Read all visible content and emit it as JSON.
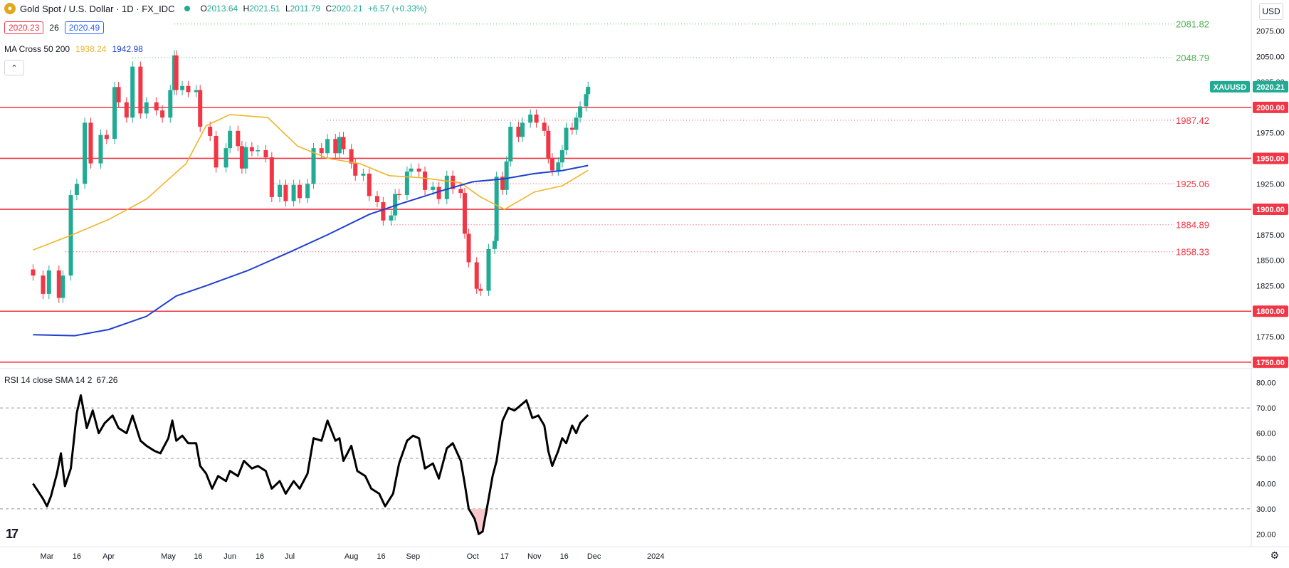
{
  "header": {
    "title": "Gold Spot / U.S. Dollar · 1D · FX_IDC",
    "coin_icon": "gold-coin-icon",
    "ohlc": {
      "o_label": "O",
      "o": "2013.64",
      "h_label": "H",
      "h": "2021.51",
      "l_label": "L",
      "l": "2011.79",
      "c_label": "C",
      "c": "2020.21",
      "change": "+6.57 (+0.33%)"
    },
    "bid": "2020.23",
    "spread": "26",
    "ask": "2020.49",
    "ma_label": "MA Cross 50 200",
    "ma50_value": "1938.24",
    "ma200_value": "1942.98",
    "collapse_icon": "chevron-up-icon",
    "currency": "USD"
  },
  "rsi_legend": {
    "label": "RSI 14 close SMA 14 2",
    "value": "67.26"
  },
  "colors": {
    "up": "#22ab94",
    "down": "#f23645",
    "ma50": "#f0b429",
    "ma200": "#1f3fd1",
    "level": "#f23645",
    "green_level": "#4caf50",
    "rsi": "#000000"
  },
  "chart_data": [
    {
      "type": "candlestick",
      "symbol": "XAUUSD",
      "last_price": "2020.21",
      "ylim": [
        1745,
        2090
      ],
      "yticks": [
        "2075.00",
        "2050.00",
        "2025.00",
        "2000.00",
        "1975.00",
        "1950.00",
        "1925.00",
        "1900.00",
        "1875.00",
        "1850.00",
        "1825.00",
        "1800.00",
        "1775.00",
        "1750.00"
      ],
      "x_labels": [
        {
          "label": "Mar",
          "date": "2023-03-01"
        },
        {
          "label": "16",
          "date": "2023-03-16"
        },
        {
          "label": "Apr",
          "date": "2023-04-01"
        },
        {
          "label": "May",
          "date": "2023-05-01"
        },
        {
          "label": "16",
          "date": "2023-05-16"
        },
        {
          "label": "Jun",
          "date": "2023-06-01"
        },
        {
          "label": "16",
          "date": "2023-06-16"
        },
        {
          "label": "Jul",
          "date": "2023-07-01"
        },
        {
          "label": "Aug",
          "date": "2023-08-01"
        },
        {
          "label": "16",
          "date": "2023-08-16"
        },
        {
          "label": "Sep",
          "date": "2023-09-01"
        },
        {
          "label": "Oct",
          "date": "2023-10-01"
        },
        {
          "label": "17",
          "date": "2023-10-17"
        },
        {
          "label": "Nov",
          "date": "2023-11-01"
        },
        {
          "label": "16",
          "date": "2023-11-16"
        },
        {
          "label": "Dec",
          "date": "2023-12-01"
        },
        {
          "label": "2024",
          "date": "2024-01-01"
        }
      ],
      "horizontal_levels": [
        2000,
        1950,
        1900,
        1800,
        1750
      ],
      "level_labels": [
        "2000.00",
        "1950.00",
        "1900.00",
        "1800.00",
        "1750.00"
      ],
      "annotated_highs": [
        {
          "value": 2081.82,
          "label": "2081.82",
          "from": "2023-05-04"
        },
        {
          "value": 2048.79,
          "label": "2048.79",
          "from": "2023-04-13"
        }
      ],
      "annotated_lows": [
        {
          "value": 1987.42,
          "label": "1987.42",
          "from": "2023-07-20"
        },
        {
          "value": 1925.06,
          "label": "1925.06",
          "from": "2023-06-23"
        },
        {
          "value": 1884.89,
          "label": "1884.89",
          "from": "2023-08-21"
        },
        {
          "value": 1858.33,
          "label": "1858.33",
          "from": "2023-03-10"
        }
      ],
      "closes": [
        [
          "2023-02-22",
          1835
        ],
        [
          "2023-02-27",
          1817
        ],
        [
          "2023-03-02",
          1840
        ],
        [
          "2023-03-07",
          1813
        ],
        [
          "2023-03-09",
          1835
        ],
        [
          "2023-03-13",
          1914
        ],
        [
          "2023-03-16",
          1925
        ],
        [
          "2023-03-20",
          1985
        ],
        [
          "2023-03-23",
          1945
        ],
        [
          "2023-03-28",
          1973
        ],
        [
          "2023-03-31",
          1969
        ],
        [
          "2023-04-04",
          2020
        ],
        [
          "2023-04-06",
          2005
        ],
        [
          "2023-04-10",
          1990
        ],
        [
          "2023-04-13",
          2040
        ],
        [
          "2023-04-17",
          1994
        ],
        [
          "2023-04-20",
          2005
        ],
        [
          "2023-04-25",
          1997
        ],
        [
          "2023-04-28",
          1990
        ],
        [
          "2023-05-02",
          2017
        ],
        [
          "2023-05-04",
          2051
        ],
        [
          "2023-05-05",
          2017
        ],
        [
          "2023-05-08",
          2021
        ],
        [
          "2023-05-11",
          2015
        ],
        [
          "2023-05-15",
          2017
        ],
        [
          "2023-05-17",
          1981
        ],
        [
          "2023-05-22",
          1972
        ],
        [
          "2023-05-25",
          1941
        ],
        [
          "2023-05-30",
          1960
        ],
        [
          "2023-06-01",
          1977
        ],
        [
          "2023-06-05",
          1962
        ],
        [
          "2023-06-07",
          1940
        ],
        [
          "2023-06-09",
          1961
        ],
        [
          "2023-06-12",
          1957
        ],
        [
          "2023-06-15",
          1958
        ],
        [
          "2023-06-19",
          1951
        ],
        [
          "2023-06-22",
          1912
        ],
        [
          "2023-06-26",
          1924
        ],
        [
          "2023-06-29",
          1908
        ],
        [
          "2023-07-03",
          1924
        ],
        [
          "2023-07-06",
          1911
        ],
        [
          "2023-07-10",
          1925
        ],
        [
          "2023-07-13",
          1960
        ],
        [
          "2023-07-17",
          1955
        ],
        [
          "2023-07-20",
          1969
        ],
        [
          "2023-07-24",
          1955
        ],
        [
          "2023-07-26",
          1971
        ],
        [
          "2023-07-28",
          1959
        ],
        [
          "2023-08-01",
          1945
        ],
        [
          "2023-08-03",
          1933
        ],
        [
          "2023-08-07",
          1935
        ],
        [
          "2023-08-10",
          1913
        ],
        [
          "2023-08-14",
          1907
        ],
        [
          "2023-08-17",
          1889
        ],
        [
          "2023-08-21",
          1894
        ],
        [
          "2023-08-23",
          1915
        ],
        [
          "2023-08-25",
          1914
        ],
        [
          "2023-08-29",
          1937
        ],
        [
          "2023-08-31",
          1940
        ],
        [
          "2023-09-04",
          1937
        ],
        [
          "2023-09-07",
          1919
        ],
        [
          "2023-09-11",
          1922
        ],
        [
          "2023-09-14",
          1910
        ],
        [
          "2023-09-18",
          1933
        ],
        [
          "2023-09-21",
          1920
        ],
        [
          "2023-09-25",
          1916
        ],
        [
          "2023-09-27",
          1876
        ],
        [
          "2023-09-29",
          1848
        ],
        [
          "2023-10-03",
          1822
        ],
        [
          "2023-10-05",
          1820
        ],
        [
          "2023-10-09",
          1861
        ],
        [
          "2023-10-12",
          1869
        ],
        [
          "2023-10-13",
          1932
        ],
        [
          "2023-10-16",
          1919
        ],
        [
          "2023-10-18",
          1947
        ],
        [
          "2023-10-20",
          1981
        ],
        [
          "2023-10-24",
          1971
        ],
        [
          "2023-10-26",
          1985
        ],
        [
          "2023-10-30",
          1993
        ],
        [
          "2023-11-02",
          1985
        ],
        [
          "2023-11-06",
          1977
        ],
        [
          "2023-11-08",
          1950
        ],
        [
          "2023-11-10",
          1938
        ],
        [
          "2023-11-13",
          1946
        ],
        [
          "2023-11-15",
          1958
        ],
        [
          "2023-11-17",
          1980
        ],
        [
          "2023-11-20",
          1978
        ],
        [
          "2023-11-22",
          1990
        ],
        [
          "2023-11-24",
          2001
        ],
        [
          "2023-11-27",
          2013
        ],
        [
          "2023-11-28",
          2020.21
        ]
      ],
      "ma50_path": [
        [
          "2023-02-22",
          1860
        ],
        [
          "2023-03-15",
          1876
        ],
        [
          "2023-04-01",
          1890
        ],
        [
          "2023-04-20",
          1910
        ],
        [
          "2023-05-10",
          1945
        ],
        [
          "2023-05-20",
          1982
        ],
        [
          "2023-06-01",
          1993
        ],
        [
          "2023-06-20",
          1990
        ],
        [
          "2023-07-05",
          1962
        ],
        [
          "2023-07-20",
          1950
        ],
        [
          "2023-08-05",
          1945
        ],
        [
          "2023-08-20",
          1933
        ],
        [
          "2023-09-05",
          1931
        ],
        [
          "2023-09-25",
          1926
        ],
        [
          "2023-10-05",
          1912
        ],
        [
          "2023-10-17",
          1900
        ],
        [
          "2023-11-01",
          1917
        ],
        [
          "2023-11-15",
          1923
        ],
        [
          "2023-11-28",
          1938.24
        ]
      ],
      "ma200_path": [
        [
          "2023-02-22",
          1777
        ],
        [
          "2023-03-15",
          1776
        ],
        [
          "2023-04-01",
          1782
        ],
        [
          "2023-04-20",
          1795
        ],
        [
          "2023-05-05",
          1815
        ],
        [
          "2023-05-20",
          1825
        ],
        [
          "2023-06-10",
          1840
        ],
        [
          "2023-07-01",
          1858
        ],
        [
          "2023-07-20",
          1875
        ],
        [
          "2023-08-10",
          1895
        ],
        [
          "2023-08-25",
          1905
        ],
        [
          "2023-09-15",
          1918
        ],
        [
          "2023-10-01",
          1927
        ],
        [
          "2023-10-17",
          1930
        ],
        [
          "2023-11-01",
          1935
        ],
        [
          "2023-11-15",
          1938
        ],
        [
          "2023-11-28",
          1942.98
        ]
      ],
      "price_tags": [
        {
          "label": "XAUUSD",
          "value": "2020.21"
        }
      ]
    },
    {
      "type": "line",
      "name": "RSI 14 close SMA 14 2",
      "ylim": [
        15,
        85
      ],
      "yticks": [
        "80.00",
        "70.00",
        "60.00",
        "50.00",
        "40.00",
        "30.00",
        "20.00"
      ],
      "guide_levels": [
        70,
        50,
        30
      ],
      "values": [
        [
          "2023-02-22",
          40
        ],
        [
          "2023-02-27",
          34
        ],
        [
          "2023-03-01",
          31
        ],
        [
          "2023-03-03",
          35
        ],
        [
          "2023-03-06",
          44
        ],
        [
          "2023-03-08",
          52
        ],
        [
          "2023-03-10",
          39
        ],
        [
          "2023-03-13",
          46
        ],
        [
          "2023-03-16",
          68
        ],
        [
          "2023-03-18",
          75
        ],
        [
          "2023-03-21",
          62
        ],
        [
          "2023-03-24",
          69
        ],
        [
          "2023-03-27",
          60
        ],
        [
          "2023-03-30",
          64
        ],
        [
          "2023-04-03",
          67
        ],
        [
          "2023-04-06",
          62
        ],
        [
          "2023-04-10",
          60
        ],
        [
          "2023-04-13",
          67
        ],
        [
          "2023-04-17",
          57
        ],
        [
          "2023-04-20",
          55
        ],
        [
          "2023-04-24",
          53
        ],
        [
          "2023-04-27",
          52
        ],
        [
          "2023-05-01",
          58
        ],
        [
          "2023-05-03",
          65
        ],
        [
          "2023-05-05",
          57
        ],
        [
          "2023-05-08",
          59
        ],
        [
          "2023-05-11",
          56
        ],
        [
          "2023-05-15",
          56
        ],
        [
          "2023-05-17",
          47
        ],
        [
          "2023-05-20",
          44
        ],
        [
          "2023-05-23",
          38
        ],
        [
          "2023-05-26",
          43
        ],
        [
          "2023-05-30",
          41
        ],
        [
          "2023-06-01",
          45
        ],
        [
          "2023-06-05",
          43
        ],
        [
          "2023-06-08",
          49
        ],
        [
          "2023-06-12",
          46
        ],
        [
          "2023-06-15",
          47
        ],
        [
          "2023-06-19",
          45
        ],
        [
          "2023-06-22",
          38
        ],
        [
          "2023-06-26",
          41
        ],
        [
          "2023-06-29",
          36
        ],
        [
          "2023-07-03",
          41
        ],
        [
          "2023-07-06",
          38
        ],
        [
          "2023-07-10",
          44
        ],
        [
          "2023-07-13",
          58
        ],
        [
          "2023-07-17",
          57
        ],
        [
          "2023-07-20",
          65
        ],
        [
          "2023-07-24",
          57
        ],
        [
          "2023-07-26",
          58
        ],
        [
          "2023-07-28",
          49
        ],
        [
          "2023-08-01",
          55
        ],
        [
          "2023-08-04",
          45
        ],
        [
          "2023-08-08",
          43
        ],
        [
          "2023-08-11",
          38
        ],
        [
          "2023-08-15",
          36
        ],
        [
          "2023-08-18",
          31
        ],
        [
          "2023-08-22",
          36
        ],
        [
          "2023-08-25",
          48
        ],
        [
          "2023-08-29",
          57
        ],
        [
          "2023-09-01",
          59
        ],
        [
          "2023-09-04",
          58
        ],
        [
          "2023-09-07",
          46
        ],
        [
          "2023-09-11",
          48
        ],
        [
          "2023-09-14",
          42
        ],
        [
          "2023-09-18",
          54
        ],
        [
          "2023-09-21",
          56
        ],
        [
          "2023-09-25",
          49
        ],
        [
          "2023-09-27",
          40
        ],
        [
          "2023-09-29",
          30
        ],
        [
          "2023-10-02",
          26
        ],
        [
          "2023-10-04",
          20
        ],
        [
          "2023-10-06",
          21
        ],
        [
          "2023-10-09",
          34
        ],
        [
          "2023-10-11",
          43
        ],
        [
          "2023-10-13",
          49
        ],
        [
          "2023-10-16",
          65
        ],
        [
          "2023-10-19",
          70
        ],
        [
          "2023-10-22",
          69
        ],
        [
          "2023-10-25",
          71
        ],
        [
          "2023-10-28",
          73
        ],
        [
          "2023-10-31",
          66
        ],
        [
          "2023-11-03",
          67
        ],
        [
          "2023-11-06",
          63
        ],
        [
          "2023-11-08",
          53
        ],
        [
          "2023-11-10",
          47
        ],
        [
          "2023-11-13",
          53
        ],
        [
          "2023-11-15",
          58
        ],
        [
          "2023-11-17",
          56
        ],
        [
          "2023-11-20",
          63
        ],
        [
          "2023-11-22",
          60
        ],
        [
          "2023-11-24",
          64
        ],
        [
          "2023-11-28",
          67.26
        ]
      ],
      "oversold_fill": true
    }
  ]
}
